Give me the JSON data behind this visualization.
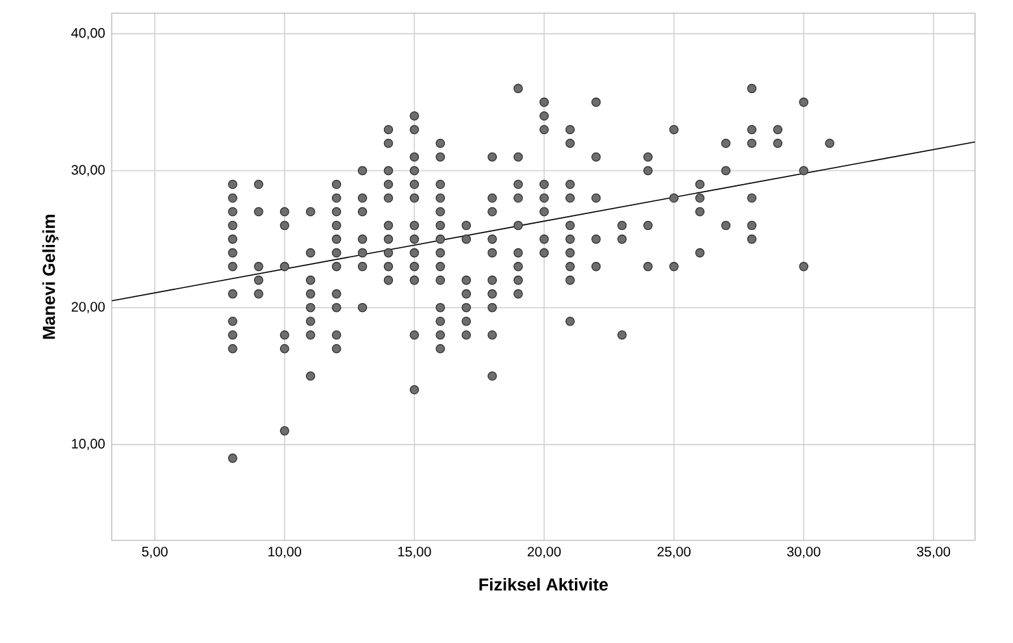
{
  "chart_data": {
    "type": "scatter",
    "xlabel": "Fiziksel Aktivite",
    "ylabel": "Manevi Gelişim",
    "xlim": [
      3.34,
      36.6
    ],
    "ylim": [
      3,
      41.5
    ],
    "xticks": [
      {
        "value": 5,
        "label": "5,00"
      },
      {
        "value": 10,
        "label": "10,00"
      },
      {
        "value": 15,
        "label": "15,00"
      },
      {
        "value": 20,
        "label": "20,00"
      },
      {
        "value": 25,
        "label": "25,00"
      },
      {
        "value": 30,
        "label": "30,00"
      },
      {
        "value": 35,
        "label": "35,00"
      }
    ],
    "yticks": [
      {
        "value": 10,
        "label": "10,00"
      },
      {
        "value": 20,
        "label": "20,00"
      },
      {
        "value": 30,
        "label": "30,00"
      },
      {
        "value": 40,
        "label": "40,00"
      }
    ],
    "grid": true,
    "marker": "circle",
    "series": [
      {
        "color": "#6e6e6e",
        "x": [
          8,
          8,
          8,
          8,
          8,
          8,
          8,
          8,
          8,
          8,
          8,
          8,
          9,
          9,
          9,
          9,
          9,
          10,
          10,
          10,
          10,
          10,
          10,
          11,
          11,
          11,
          11,
          11,
          11,
          11,
          11,
          12,
          12,
          12,
          12,
          12,
          12,
          12,
          12,
          12,
          12,
          12,
          13,
          13,
          13,
          13,
          13,
          13,
          13,
          14,
          14,
          14,
          14,
          14,
          14,
          14,
          14,
          14,
          14,
          15,
          15,
          15,
          15,
          15,
          15,
          15,
          15,
          15,
          15,
          15,
          15,
          15,
          16,
          16,
          16,
          16,
          16,
          16,
          16,
          16,
          16,
          16,
          16,
          16,
          16,
          16,
          17,
          17,
          17,
          17,
          17,
          17,
          17,
          18,
          18,
          18,
          18,
          18,
          18,
          18,
          18,
          18,
          18,
          19,
          19,
          19,
          19,
          19,
          19,
          19,
          19,
          19,
          20,
          20,
          20,
          20,
          20,
          20,
          20,
          20,
          21,
          21,
          21,
          21,
          21,
          21,
          21,
          21,
          21,
          21,
          22,
          22,
          22,
          22,
          22,
          23,
          23,
          23,
          24,
          24,
          24,
          24,
          25,
          25,
          25,
          26,
          26,
          26,
          26,
          27,
          27,
          27,
          28,
          28,
          28,
          28,
          28,
          28,
          29,
          29,
          30,
          30,
          30,
          31
        ],
        "values": [
          29,
          28,
          27,
          26,
          25,
          24,
          23,
          21,
          19,
          18,
          17,
          9,
          29,
          27,
          23,
          22,
          21,
          27,
          26,
          23,
          18,
          17,
          11,
          27,
          24,
          22,
          21,
          20,
          19,
          18,
          15,
          29,
          28,
          27,
          26,
          25,
          24,
          23,
          21,
          20,
          18,
          17,
          30,
          28,
          27,
          25,
          24,
          23,
          20,
          33,
          32,
          30,
          29,
          28,
          26,
          25,
          24,
          23,
          22,
          34,
          33,
          31,
          30,
          29,
          28,
          26,
          25,
          24,
          23,
          22,
          18,
          14,
          32,
          31,
          29,
          28,
          27,
          26,
          25,
          24,
          23,
          22,
          20,
          19,
          18,
          17,
          26,
          25,
          22,
          21,
          20,
          19,
          18,
          31,
          28,
          27,
          25,
          24,
          22,
          21,
          20,
          18,
          15,
          36,
          31,
          29,
          28,
          26,
          24,
          23,
          22,
          21,
          35,
          34,
          33,
          29,
          28,
          27,
          25,
          24,
          33,
          32,
          29,
          28,
          26,
          25,
          24,
          23,
          22,
          19,
          35,
          31,
          28,
          25,
          23,
          26,
          25,
          18,
          31,
          30,
          26,
          23,
          33,
          28,
          23,
          29,
          28,
          27,
          24,
          32,
          30,
          26,
          36,
          33,
          32,
          28,
          26,
          25,
          33,
          32,
          35,
          30,
          23,
          32
        ]
      },
      {
        "type": "line",
        "color": "#000000",
        "marker": "none",
        "x": [
          3.34,
          36.6
        ],
        "values": [
          20.5,
          32.1
        ]
      }
    ]
  }
}
